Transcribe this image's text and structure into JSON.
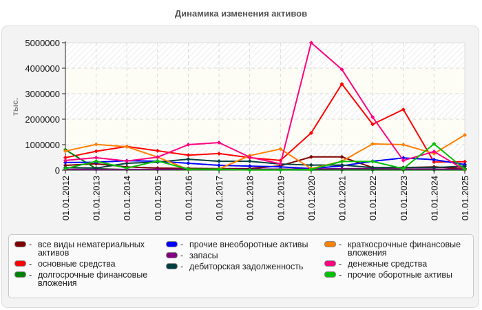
{
  "title": "Динамика изменения активов",
  "chart_data": {
    "type": "line",
    "title": "Динамика изменения активов",
    "xlabel": "",
    "ylabel": "тыс.",
    "ylim": [
      0,
      5000000
    ],
    "yticks": [
      "0",
      "1000000",
      "2000000",
      "3000000",
      "4000000",
      "5000000"
    ],
    "grid": true,
    "legend_position": "bottom",
    "categories": [
      "01.01.2012",
      "01.01.2013",
      "01.01.2014",
      "01.01.2015",
      "01.01.2016",
      "01.01.2017",
      "01.01.2018",
      "01.01.2019",
      "01.01.2020",
      "01.01.2021",
      "01.01.2022",
      "01.01.2023",
      "01.01.2024",
      "01.01.2025"
    ],
    "series": [
      {
        "name": "все виды нематериальных активов",
        "color": "#800000",
        "values": [
          190000,
          250000,
          130000,
          80000,
          70000,
          60000,
          60000,
          170000,
          520000,
          520000,
          100000,
          100000,
          130000,
          60000
        ]
      },
      {
        "name": "основные средства",
        "color": "#ff0000",
        "values": [
          490000,
          740000,
          930000,
          760000,
          590000,
          650000,
          490000,
          380000,
          1460000,
          3380000,
          1800000,
          2380000,
          320000,
          330000
        ]
      },
      {
        "name": "долгосрочные финансовые вложения",
        "color": "#008000",
        "values": [
          800000,
          60000,
          20000,
          20000,
          20000,
          20000,
          10000,
          10000,
          10000,
          10000,
          10000,
          10000,
          10000,
          10000
        ]
      },
      {
        "name": "прочие внеоборотные активы",
        "color": "#0000ff",
        "values": [
          300000,
          310000,
          370000,
          350000,
          270000,
          190000,
          160000,
          130000,
          60000,
          170000,
          350000,
          480000,
          410000,
          220000
        ]
      },
      {
        "name": "запасы",
        "color": "#800080",
        "values": [
          30000,
          30000,
          30000,
          30000,
          40000,
          40000,
          40000,
          40000,
          40000,
          60000,
          60000,
          40000,
          40000,
          40000
        ]
      },
      {
        "name": "дебиторская задолженность",
        "color": "#004040",
        "values": [
          100000,
          80000,
          270000,
          320000,
          430000,
          350000,
          350000,
          240000,
          200000,
          200000,
          100000,
          100000,
          100000,
          160000
        ]
      },
      {
        "name": "краткосрочные финансовые вложения",
        "color": "#ff8000",
        "values": [
          750000,
          1010000,
          920000,
          510000,
          30000,
          50000,
          570000,
          830000,
          60000,
          350000,
          1030000,
          1000000,
          650000,
          1380000
        ]
      },
      {
        "name": "денежные средства",
        "color": "#ff0080",
        "values": [
          380000,
          490000,
          360000,
          510000,
          1000000,
          1080000,
          510000,
          250000,
          5000000,
          3950000,
          2080000,
          380000,
          730000,
          10000
        ]
      },
      {
        "name": "прочие оборотные активы",
        "color": "#00c000",
        "values": [
          60000,
          350000,
          80000,
          360000,
          40000,
          40000,
          10000,
          10000,
          30000,
          340000,
          340000,
          60000,
          1030000,
          30000
        ]
      }
    ]
  },
  "legend": {
    "columns": [
      [
        0,
        1,
        2
      ],
      [
        3,
        4,
        5
      ],
      [
        6,
        7,
        8
      ]
    ]
  }
}
